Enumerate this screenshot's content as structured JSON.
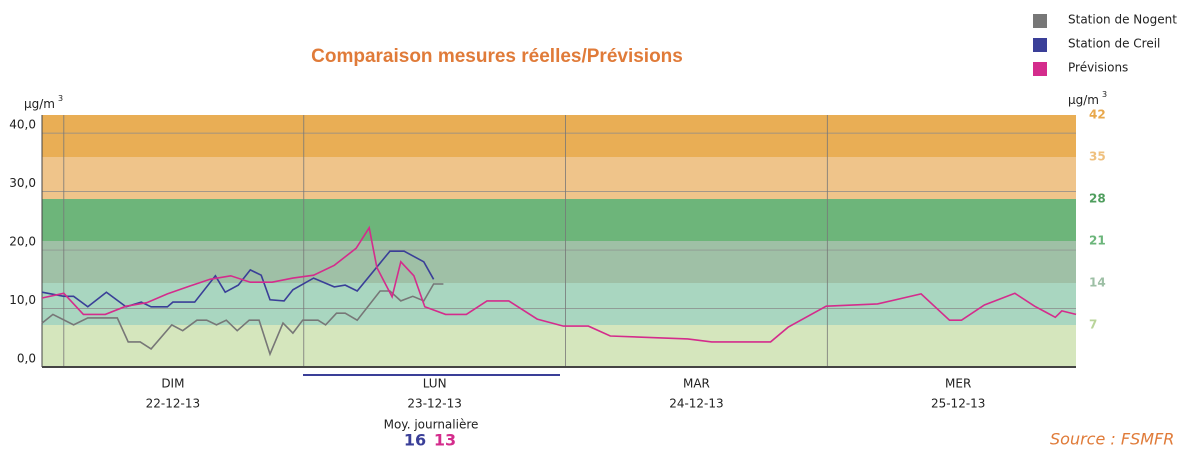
{
  "chart_data": {
    "type": "line",
    "title": "Comparaison mesures réelles/Prévisions",
    "y_unit": "µg/m",
    "y_unit_exp": "3",
    "ylim": [
      0,
      43.1
    ],
    "yticks": [
      {
        "value": 0,
        "label": "0,0"
      },
      {
        "value": 10,
        "label": "10,0"
      },
      {
        "value": 20,
        "label": "20,0"
      },
      {
        "value": 30,
        "label": "30,0"
      },
      {
        "value": 40,
        "label": "40,0"
      }
    ],
    "y2lim": [
      0,
      42
    ],
    "y2ticks": [
      7,
      14,
      21,
      28,
      35,
      42
    ],
    "y2tick_colors": [
      "#b9d49a",
      "#9dbfa5",
      "#6bb57a",
      "#4f9e5e",
      "#efc07e",
      "#e8a84c"
    ],
    "bands": [
      {
        "from": 0,
        "to": 7,
        "color": "#d5e6bd"
      },
      {
        "from": 7,
        "to": 14,
        "color": "#a9d6c0"
      },
      {
        "from": 14,
        "to": 21,
        "color": "#9fc0a6"
      },
      {
        "from": 21,
        "to": 28,
        "color": "#6db57a"
      },
      {
        "from": 28,
        "to": 35,
        "color": "#efc48a"
      },
      {
        "from": 35,
        "to": 42,
        "color": "#e9ae55"
      }
    ],
    "xlim": [
      0,
      94.8
    ],
    "days": [
      {
        "name": "DIM",
        "date": "22-12-13"
      },
      {
        "name": "LUN",
        "date": "23-12-13"
      },
      {
        "name": "MAR",
        "date": "24-12-13"
      },
      {
        "name": "MER",
        "date": "25-12-13"
      }
    ],
    "series": [
      {
        "name": "Station de Nogent",
        "color": "#777777",
        "x": [
          0,
          1,
          2.9,
          4.2,
          6.9,
          7.9,
          9,
          10,
          11.9,
          12.9,
          14.2,
          15.1,
          16,
          16.9,
          17.9,
          19,
          19.9,
          20.9,
          22.1,
          23,
          23.9,
          25.3,
          26,
          27,
          27.8,
          28.9,
          31,
          31.9,
          32.9,
          34,
          35,
          35.9,
          36.8
        ],
        "values": [
          7.5,
          9,
          7.2,
          8.4,
          8.4,
          4.3,
          4.3,
          3.1,
          7.2,
          6.2,
          8,
          8,
          7.2,
          8,
          6.2,
          8,
          8,
          2.2,
          7.5,
          5.8,
          8,
          8,
          7.2,
          9.2,
          9.2,
          8,
          13,
          13,
          11.3,
          12.1,
          11.3,
          14.2,
          14.2
        ]
      },
      {
        "name": "Station de Creil",
        "color": "#3a3f98",
        "x": [
          0,
          2,
          2.9,
          4.2,
          5.9,
          7.7,
          9.1,
          10,
          11.5,
          12,
          14,
          15.9,
          16.8,
          18,
          19.1,
          20.1,
          20.9,
          22.2,
          23,
          24.9,
          26.8,
          27.8,
          28.9,
          31.9,
          33.2,
          35,
          35.9
        ],
        "values": [
          12.8,
          12.1,
          12.1,
          10.3,
          12.8,
          10.3,
          11.1,
          10.3,
          10.3,
          11.1,
          11.1,
          15.6,
          12.8,
          14,
          16.6,
          15.7,
          11.5,
          11.3,
          13.2,
          15.2,
          13.7,
          14,
          13,
          19.8,
          19.8,
          18,
          15
        ]
      },
      {
        "name": "Prévisions",
        "color": "#d42c8c",
        "x": [
          0,
          2,
          3.8,
          5.8,
          7.7,
          9.6,
          11.5,
          13.5,
          15.4,
          17.3,
          19.1,
          21.1,
          23,
          24.9,
          26.8,
          28.8,
          30,
          30.7,
          32.1,
          32.9,
          34.1,
          35.1,
          37,
          38.9,
          40.8,
          42.8,
          45.4,
          47.8,
          50.1,
          52.1,
          59.2,
          61.4,
          66.8,
          68.4,
          71.9,
          76.6,
          80.6,
          83.2,
          84.3,
          86.4,
          89.2,
          91,
          92,
          92.9,
          93.5,
          94.8
        ],
        "values": [
          11.8,
          12.6,
          9,
          9,
          10.4,
          11,
          12.5,
          13.8,
          15,
          15.6,
          14.5,
          14.5,
          15.2,
          15.7,
          17.4,
          20.3,
          23.8,
          17,
          12,
          18,
          15.6,
          10.3,
          9,
          9,
          11.3,
          11.3,
          8.2,
          7,
          7,
          5.3,
          4.8,
          4.3,
          4.3,
          6.8,
          10.4,
          10.8,
          12.5,
          8,
          8,
          10.6,
          12.6,
          10.4,
          9.4,
          8.5,
          9.6,
          9
        ]
      }
    ],
    "average_label": "Moy. journalière",
    "averages": [
      16,
      13
    ],
    "source": "Source : FSMFR"
  }
}
